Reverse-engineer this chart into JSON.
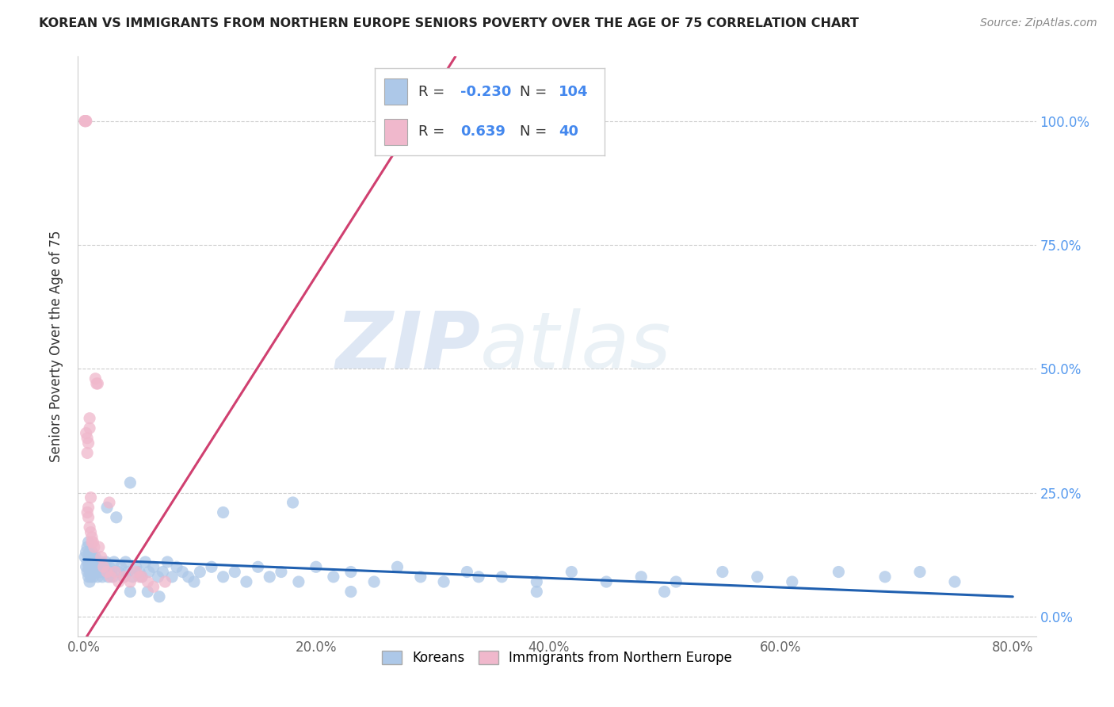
{
  "title": "KOREAN VS IMMIGRANTS FROM NORTHERN EUROPE SENIORS POVERTY OVER THE AGE OF 75 CORRELATION CHART",
  "source": "Source: ZipAtlas.com",
  "ylabel": "Seniors Poverty Over the Age of 75",
  "xlim": [
    -0.005,
    0.82
  ],
  "ylim": [
    -0.04,
    1.13
  ],
  "xticks": [
    0.0,
    0.2,
    0.4,
    0.6,
    0.8
  ],
  "xtick_labels": [
    "0.0%",
    "20.0%",
    "40.0%",
    "60.0%",
    "80.0%"
  ],
  "yticks": [
    0.0,
    0.25,
    0.5,
    0.75,
    1.0
  ],
  "right_ytick_labels": [
    "0.0%",
    "25.0%",
    "50.0%",
    "75.0%",
    "100.0%"
  ],
  "blue_R": -0.23,
  "blue_N": 104,
  "pink_R": 0.639,
  "pink_N": 40,
  "blue_color": "#adc8e8",
  "blue_line_color": "#2060b0",
  "pink_color": "#f0b8cc",
  "pink_line_color": "#d04070",
  "watermark_zip": "ZIP",
  "watermark_atlas": "atlas",
  "legend_label_blue": "Koreans",
  "legend_label_pink": "Immigrants from Northern Europe",
  "blue_scatter_x": [
    0.001,
    0.002,
    0.002,
    0.003,
    0.003,
    0.003,
    0.004,
    0.004,
    0.004,
    0.004,
    0.005,
    0.005,
    0.005,
    0.005,
    0.006,
    0.006,
    0.006,
    0.007,
    0.007,
    0.007,
    0.008,
    0.008,
    0.008,
    0.009,
    0.009,
    0.01,
    0.01,
    0.011,
    0.012,
    0.012,
    0.013,
    0.014,
    0.015,
    0.016,
    0.017,
    0.018,
    0.019,
    0.02,
    0.021,
    0.022,
    0.024,
    0.025,
    0.026,
    0.028,
    0.03,
    0.032,
    0.034,
    0.036,
    0.038,
    0.04,
    0.042,
    0.045,
    0.048,
    0.05,
    0.053,
    0.056,
    0.06,
    0.064,
    0.068,
    0.072,
    0.076,
    0.08,
    0.085,
    0.09,
    0.095,
    0.1,
    0.11,
    0.12,
    0.13,
    0.14,
    0.15,
    0.16,
    0.17,
    0.185,
    0.2,
    0.215,
    0.23,
    0.25,
    0.27,
    0.29,
    0.31,
    0.33,
    0.36,
    0.39,
    0.42,
    0.45,
    0.48,
    0.51,
    0.55,
    0.58,
    0.61,
    0.65,
    0.69,
    0.72,
    0.75,
    0.04,
    0.055,
    0.23,
    0.39,
    0.5,
    0.12,
    0.34,
    0.065,
    0.18
  ],
  "blue_scatter_y": [
    0.12,
    0.1,
    0.13,
    0.09,
    0.11,
    0.14,
    0.08,
    0.1,
    0.12,
    0.15,
    0.09,
    0.11,
    0.13,
    0.07,
    0.1,
    0.12,
    0.08,
    0.09,
    0.11,
    0.13,
    0.08,
    0.1,
    0.12,
    0.09,
    0.11,
    0.1,
    0.12,
    0.09,
    0.11,
    0.08,
    0.1,
    0.09,
    0.11,
    0.08,
    0.1,
    0.09,
    0.11,
    0.22,
    0.08,
    0.1,
    0.09,
    0.08,
    0.11,
    0.2,
    0.09,
    0.1,
    0.08,
    0.11,
    0.09,
    0.27,
    0.08,
    0.1,
    0.09,
    0.08,
    0.11,
    0.09,
    0.1,
    0.08,
    0.09,
    0.11,
    0.08,
    0.1,
    0.09,
    0.08,
    0.07,
    0.09,
    0.1,
    0.08,
    0.09,
    0.07,
    0.1,
    0.08,
    0.09,
    0.07,
    0.1,
    0.08,
    0.09,
    0.07,
    0.1,
    0.08,
    0.07,
    0.09,
    0.08,
    0.07,
    0.09,
    0.07,
    0.08,
    0.07,
    0.09,
    0.08,
    0.07,
    0.09,
    0.08,
    0.09,
    0.07,
    0.05,
    0.05,
    0.05,
    0.05,
    0.05,
    0.21,
    0.08,
    0.04,
    0.23
  ],
  "pink_scatter_x": [
    0.001,
    0.001,
    0.001,
    0.002,
    0.002,
    0.003,
    0.003,
    0.004,
    0.004,
    0.005,
    0.005,
    0.006,
    0.006,
    0.007,
    0.007,
    0.008,
    0.009,
    0.01,
    0.011,
    0.012,
    0.013,
    0.015,
    0.017,
    0.02,
    0.023,
    0.027,
    0.03,
    0.035,
    0.04,
    0.045,
    0.05,
    0.06,
    0.07,
    0.002,
    0.003,
    0.004,
    0.005,
    0.022,
    0.048,
    0.055
  ],
  "pink_scatter_y": [
    1.0,
    1.0,
    1.0,
    1.0,
    1.0,
    0.36,
    0.33,
    0.22,
    0.2,
    0.4,
    0.38,
    0.24,
    0.17,
    0.16,
    0.15,
    0.15,
    0.14,
    0.48,
    0.47,
    0.47,
    0.14,
    0.12,
    0.1,
    0.09,
    0.08,
    0.09,
    0.07,
    0.08,
    0.07,
    0.09,
    0.08,
    0.06,
    0.07,
    0.37,
    0.21,
    0.35,
    0.18,
    0.23,
    0.08,
    0.07
  ],
  "pink_line_x0": 0.0,
  "pink_line_y0": -0.05,
  "pink_line_x1": 0.32,
  "pink_line_y1": 1.13,
  "blue_line_x0": 0.0,
  "blue_line_y0": 0.115,
  "blue_line_x1": 0.8,
  "blue_line_y1": 0.04
}
